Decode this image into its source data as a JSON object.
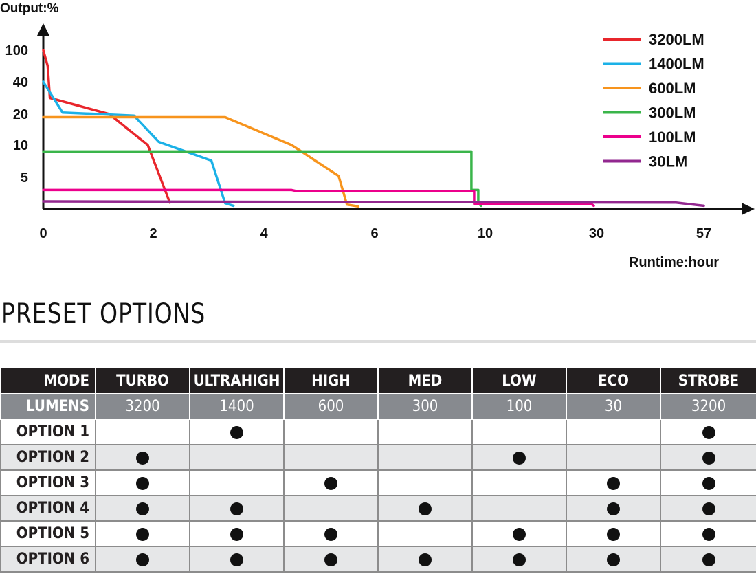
{
  "chart_data": {
    "type": "line",
    "ylabel": "Output:%",
    "xlabel": "Runtime:hour",
    "y_ticks": [
      "100",
      "40",
      "20",
      "10",
      "5"
    ],
    "x_ticks": [
      "0",
      "2",
      "4",
      "6",
      "10",
      "30",
      "57"
    ],
    "legend_position": "top-right",
    "series": [
      {
        "name": "3200LM",
        "color": "#e8262c",
        "points": [
          [
            0,
            100
          ],
          [
            0.08,
            70
          ],
          [
            0.12,
            30
          ],
          [
            1.2,
            20
          ],
          [
            1.9,
            10
          ],
          [
            2.3,
            1
          ]
        ]
      },
      {
        "name": "1400LM",
        "color": "#1bb1e7",
        "points": [
          [
            0,
            40
          ],
          [
            0.35,
            21
          ],
          [
            1.65,
            19.5
          ],
          [
            2.1,
            11
          ],
          [
            3.05,
            7.6
          ],
          [
            3.3,
            0.9
          ],
          [
            3.45,
            0.5
          ]
        ]
      },
      {
        "name": "600LM",
        "color": "#f7941d",
        "points": [
          [
            0,
            19
          ],
          [
            3.3,
            19
          ],
          [
            4.5,
            10
          ],
          [
            5.35,
            5.2
          ],
          [
            5.5,
            0.7
          ],
          [
            5.7,
            0.4
          ]
        ]
      },
      {
        "name": "300LM",
        "color": "#3ab54a",
        "points": [
          [
            0,
            9
          ],
          [
            9.5,
            9
          ],
          [
            9.5,
            3
          ],
          [
            9.75,
            3
          ],
          [
            9.75,
            0.9
          ],
          [
            9.85,
            0.5
          ]
        ]
      },
      {
        "name": "100LM",
        "color": "#ec008c",
        "points": [
          [
            0,
            3
          ],
          [
            4.5,
            3
          ],
          [
            4.6,
            2.8
          ],
          [
            9.6,
            2.8
          ],
          [
            9.6,
            0.8
          ],
          [
            29,
            0.8
          ],
          [
            29.5,
            0.5
          ]
        ]
      },
      {
        "name": "30LM",
        "color": "#92278f",
        "points": [
          [
            0,
            1.2
          ],
          [
            50,
            1.0
          ],
          [
            57,
            0.5
          ]
        ]
      }
    ]
  },
  "table": {
    "title": "PRESET OPTIONS",
    "mode_label": "MODE",
    "lumens_label": "LUMENS",
    "modes": [
      "TURBO",
      "ULTRAHIGH",
      "HIGH",
      "MED",
      "LOW",
      "ECO",
      "STROBE"
    ],
    "lumens": [
      "3200",
      "1400",
      "600",
      "300",
      "100",
      "30",
      "3200"
    ],
    "options": [
      {
        "label": "OPTION 1",
        "enabled": [
          false,
          true,
          false,
          false,
          false,
          false,
          true
        ]
      },
      {
        "label": "OPTION 2",
        "enabled": [
          true,
          false,
          false,
          false,
          true,
          false,
          true
        ]
      },
      {
        "label": "OPTION 3",
        "enabled": [
          true,
          false,
          true,
          false,
          false,
          true,
          true
        ]
      },
      {
        "label": "OPTION 4",
        "enabled": [
          true,
          true,
          false,
          true,
          false,
          true,
          true
        ]
      },
      {
        "label": "OPTION 5",
        "enabled": [
          true,
          true,
          true,
          false,
          true,
          true,
          true
        ]
      },
      {
        "label": "OPTION 6",
        "enabled": [
          true,
          true,
          true,
          true,
          true,
          true,
          true
        ]
      }
    ]
  }
}
